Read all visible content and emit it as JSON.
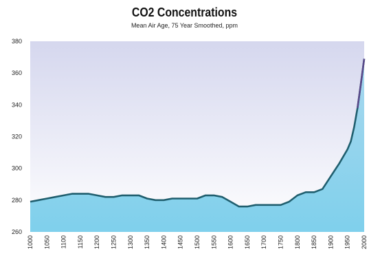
{
  "chart_data": {
    "type": "area",
    "title": "CO2 Concentrations",
    "subtitle": "Mean Air Age, 75 Year Smoothed, ppm",
    "xlabel": "",
    "ylabel": "",
    "xlim": [
      1000,
      2000
    ],
    "ylim": [
      260,
      380
    ],
    "yticks": [
      260,
      280,
      300,
      320,
      340,
      360,
      380
    ],
    "xticks": [
      1000,
      1050,
      1100,
      1150,
      1200,
      1250,
      1300,
      1350,
      1400,
      1450,
      1500,
      1550,
      1600,
      1650,
      1700,
      1750,
      1800,
      1850,
      1900,
      1950,
      2000
    ],
    "grid": false,
    "legend": "none",
    "series": [
      {
        "x": [
          1000,
          1025,
          1050,
          1075,
          1100,
          1125,
          1150,
          1175,
          1200,
          1225,
          1250,
          1275,
          1300,
          1325,
          1350,
          1375,
          1400,
          1425,
          1450,
          1475,
          1500,
          1525,
          1550,
          1575,
          1600,
          1625,
          1650,
          1675,
          1700,
          1725,
          1750,
          1775,
          1800,
          1825,
          1850,
          1875,
          1900,
          1925,
          1950,
          1960,
          1970,
          1980,
          1990,
          2000
        ],
        "y": [
          279,
          280,
          281,
          282,
          283,
          284,
          284,
          284,
          283,
          282,
          282,
          283,
          283,
          283,
          281,
          280,
          280,
          281,
          281,
          281,
          281,
          283,
          283,
          282,
          279,
          276,
          276,
          277,
          277,
          277,
          277,
          279,
          283,
          285,
          285,
          287,
          295,
          303,
          312,
          317,
          326,
          338,
          353,
          369
        ]
      }
    ],
    "colors": {
      "line": "#1f5e6e",
      "line_recent": "#5a4a8a",
      "area_top": "#a9d8ee",
      "area_bottom": "#7fd0ec",
      "plot_bg_top": "#d5d7ee",
      "plot_bg_bottom": "#ffffff"
    }
  }
}
